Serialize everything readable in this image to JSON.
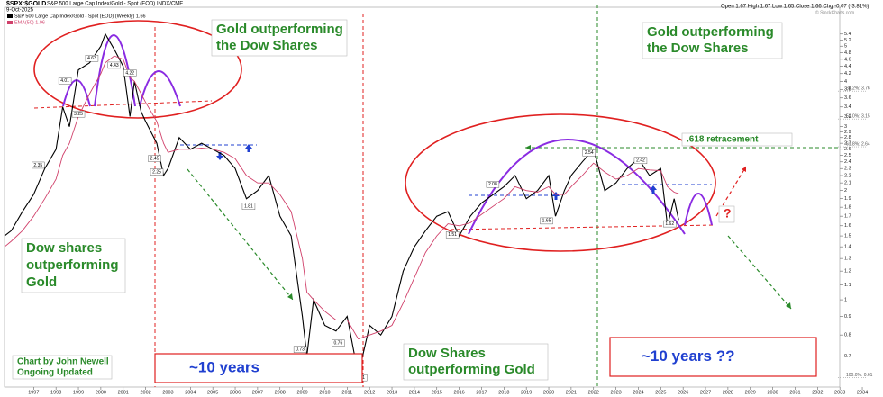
{
  "chart_data": {
    "type": "line",
    "title": "$SPX:$GOLD",
    "subtitle": "S&P 500 Large Cap Index/Gold - Spot (EOD) INDX/CME",
    "date": "9-Oct-2025",
    "ohlc": "Open 1.67  High 1.67  Low 1.65  Close 1.66  Chg -0.07 (-3.81%)",
    "credit": "© StockCharts.com",
    "log_scale": true,
    "x": [
      1995.7,
      1996,
      1996.5,
      1997,
      1997.5,
      1998,
      1998.3,
      1998.6,
      1999,
      1999.5,
      2000,
      2000.2,
      2000.6,
      2001,
      2001.3,
      2001.5,
      2001.8,
      2002,
      2002.5,
      2002.8,
      2003,
      2003.5,
      2004,
      2004.5,
      2005,
      2005.5,
      2006,
      2006.5,
      2007,
      2007.5,
      2008,
      2008.5,
      2009,
      2009.2,
      2009.5,
      2010,
      2010.5,
      2011,
      2011.5,
      2012,
      2012.5,
      2013,
      2013.5,
      2014,
      2014.5,
      2015,
      2015.5,
      2016,
      2016.5,
      2017,
      2018,
      2018.5,
      2019,
      2019.5,
      2020,
      2020.3,
      2020.7,
      2021,
      2021.5,
      2022,
      2022.5,
      2023,
      2023.5,
      2024,
      2024.5,
      2025,
      2025.3,
      2025.6,
      2025.8
    ],
    "series": [
      {
        "name": "S&P 500 Large Cap Index/Gold - Spot (EOD) (Weekly) 1.66",
        "color": "#000000",
        "values": [
          1.5,
          1.55,
          1.75,
          1.95,
          2.3,
          2.6,
          3.4,
          3.0,
          4.3,
          4.5,
          5.0,
          5.4,
          4.9,
          4.4,
          3.2,
          4.0,
          3.3,
          3.1,
          2.7,
          2.2,
          2.3,
          2.8,
          2.6,
          2.7,
          2.6,
          2.5,
          2.3,
          1.9,
          2.0,
          2.2,
          1.7,
          1.5,
          0.9,
          0.7,
          1.0,
          0.85,
          0.82,
          0.9,
          0.62,
          0.85,
          0.8,
          0.9,
          1.2,
          1.4,
          1.55,
          1.7,
          1.75,
          1.5,
          1.7,
          1.85,
          2.05,
          2.2,
          1.9,
          2.0,
          2.2,
          1.7,
          2.0,
          2.2,
          2.4,
          2.6,
          2.0,
          2.1,
          2.3,
          2.45,
          2.2,
          2.3,
          1.6,
          1.9,
          1.66
        ]
      },
      {
        "name": "EMA(50) 1.96",
        "color": "#d0406a",
        "values": [
          1.4,
          1.45,
          1.55,
          1.7,
          1.9,
          2.15,
          2.5,
          2.7,
          3.2,
          3.7,
          4.2,
          4.5,
          4.7,
          4.6,
          4.1,
          4.0,
          3.7,
          3.5,
          3.1,
          2.7,
          2.55,
          2.6,
          2.6,
          2.62,
          2.6,
          2.55,
          2.45,
          2.2,
          2.1,
          2.1,
          1.95,
          1.75,
          1.3,
          1.05,
          1.0,
          0.93,
          0.88,
          0.88,
          0.78,
          0.8,
          0.82,
          0.85,
          0.98,
          1.15,
          1.35,
          1.5,
          1.62,
          1.6,
          1.63,
          1.72,
          1.9,
          2.05,
          2.0,
          1.98,
          2.05,
          1.95,
          1.95,
          2.05,
          2.2,
          2.38,
          2.25,
          2.15,
          2.2,
          2.3,
          2.28,
          2.27,
          2.05,
          1.98,
          1.96
        ]
      }
    ],
    "xlim": [
      1995.7,
      2034.2
    ],
    "xticks": [
      1997,
      1998,
      1999,
      2000,
      2001,
      2002,
      2003,
      2004,
      2005,
      2006,
      2007,
      2008,
      2009,
      2010,
      2011,
      2012,
      2013,
      2014,
      2015,
      2016,
      2017,
      2018,
      2019,
      2020,
      2021,
      2022,
      2023,
      2024,
      2025,
      2026,
      2027,
      2028,
      2029,
      2030,
      2031,
      2032,
      2033,
      2034
    ],
    "ylim": [
      0.575,
      6.4
    ],
    "yticks": [
      0.7,
      0.8,
      0.9,
      1,
      1.1,
      1.2,
      1.3,
      1.4,
      1.5,
      1.6,
      1.7,
      1.8,
      1.9,
      2,
      2.1,
      2.2,
      2.3,
      2.4,
      2.5,
      2.6,
      2.7,
      2.8,
      2.9,
      3,
      3.2,
      3.4,
      3.6,
      3.8,
      4,
      4.2,
      4.4,
      4.6,
      4.8,
      5,
      5.2,
      5.4
    ],
    "fib_levels": [
      {
        "value": 3.76,
        "label": "38.2%: 3.76"
      },
      {
        "value": 3.15,
        "label": "50.0%: 3.15"
      },
      {
        "value": 2.64,
        "label": "61.8%: 2.64"
      },
      {
        "value": 0.61,
        "label": "100.0%: 0.61"
      }
    ],
    "point_labels": [
      {
        "x": 1997.2,
        "value": 2.35
      },
      {
        "x": 1998.4,
        "value": 4.01
      },
      {
        "x": 1999.6,
        "value": 4.63
      },
      {
        "x": 1999.0,
        "value": 3.25
      },
      {
        "x": 2000.6,
        "value": 4.43
      },
      {
        "x": 2001.3,
        "value": 4.22
      },
      {
        "x": 2002.4,
        "value": 2.45
      },
      {
        "x": 2002.5,
        "value": 2.25
      },
      {
        "x": 2006.6,
        "value": 1.81
      },
      {
        "x": 2008.9,
        "value": 0.73
      },
      {
        "x": 2011.6,
        "value": 0.61
      },
      {
        "x": 2010.6,
        "value": 0.76
      },
      {
        "x": 2015.7,
        "value": 1.51
      },
      {
        "x": 2017.5,
        "value": 2.08
      },
      {
        "x": 2019.9,
        "value": 1.65
      },
      {
        "x": 2021.8,
        "value": 2.54
      },
      {
        "x": 2024.1,
        "value": 2.42
      },
      {
        "x": 2025.4,
        "value": 1.62
      }
    ],
    "annotations": [
      {
        "lines": [
          "Gold outperforming",
          "the Dow Shares"
        ]
      },
      {
        "lines": [
          "Gold outperforming",
          "the Dow Shares"
        ]
      },
      {
        "lines": [
          "Dow shares",
          "outperforming",
          "Gold"
        ]
      },
      {
        "lines": [
          "Chart by John Newell",
          "Ongoing Updated"
        ]
      },
      {
        "lines": [
          "~10 years"
        ]
      },
      {
        "lines": [
          "Dow Shares",
          "outperforming Gold"
        ]
      },
      {
        "lines": [
          "~10 years ??"
        ]
      },
      {
        "lines": [
          ".618 retracement"
        ]
      },
      {
        "lines": [
          "?"
        ]
      }
    ]
  }
}
